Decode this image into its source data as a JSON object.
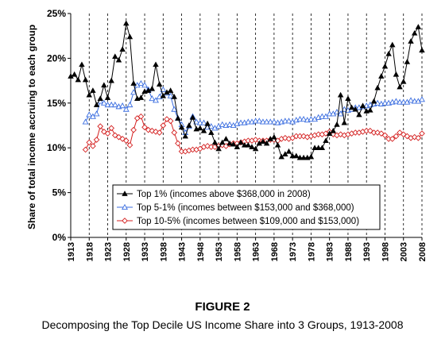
{
  "figure_label": "FIGURE 2",
  "caption": "Decomposing the Top Decile US Income Share into 3 Groups, 1913-2008",
  "chart_data": {
    "type": "line",
    "ylabel": "Share of total income accruing to each group",
    "xlabel": "",
    "ylim": [
      0,
      25
    ],
    "xlim": [
      1913,
      2008
    ],
    "yticks": [
      0,
      5,
      10,
      15,
      20,
      25
    ],
    "ytick_labels": [
      "0%",
      "5%",
      "10%",
      "15%",
      "20%",
      "25%"
    ],
    "xticks": [
      1913,
      1918,
      1923,
      1928,
      1933,
      1938,
      1943,
      1948,
      1953,
      1958,
      1963,
      1968,
      1973,
      1978,
      1983,
      1988,
      1993,
      1998,
      2003,
      2008
    ],
    "grid": "vertical-dashed",
    "legend_position": "lower-center",
    "series": [
      {
        "name": "Top 1% (incomes above $368,000 in 2008)",
        "color": "#000000",
        "marker": "filled-triangle",
        "x": [
          1913,
          1914,
          1915,
          1916,
          1917,
          1918,
          1919,
          1920,
          1921,
          1922,
          1923,
          1924,
          1925,
          1926,
          1927,
          1928,
          1929,
          1930,
          1931,
          1932,
          1933,
          1934,
          1935,
          1936,
          1937,
          1938,
          1939,
          1940,
          1941,
          1942,
          1943,
          1944,
          1945,
          1946,
          1947,
          1948,
          1949,
          1950,
          1951,
          1952,
          1953,
          1954,
          1955,
          1956,
          1957,
          1958,
          1959,
          1960,
          1961,
          1962,
          1963,
          1964,
          1965,
          1966,
          1967,
          1968,
          1969,
          1970,
          1971,
          1972,
          1973,
          1974,
          1975,
          1976,
          1977,
          1978,
          1979,
          1980,
          1981,
          1982,
          1983,
          1984,
          1985,
          1986,
          1987,
          1988,
          1989,
          1990,
          1991,
          1992,
          1993,
          1994,
          1995,
          1996,
          1997,
          1998,
          1999,
          2000,
          2001,
          2002,
          2003,
          2004,
          2005,
          2006,
          2007,
          2008
        ],
        "values": [
          18.0,
          18.2,
          17.6,
          19.3,
          17.6,
          15.9,
          16.4,
          14.8,
          15.5,
          17.0,
          15.6,
          17.5,
          20.2,
          19.8,
          21.0,
          23.9,
          22.4,
          17.2,
          15.5,
          15.6,
          16.3,
          16.4,
          16.6,
          19.3,
          17.1,
          15.8,
          16.2,
          16.4,
          15.7,
          13.3,
          12.3,
          11.3,
          12.5,
          13.4,
          12.1,
          12.2,
          11.9,
          12.7,
          11.7,
          10.6,
          9.9,
          10.6,
          11.0,
          10.5,
          10.4,
          10.1,
          10.6,
          10.3,
          10.3,
          10.1,
          9.9,
          10.5,
          10.7,
          10.5,
          11.0,
          11.2,
          10.3,
          9.0,
          9.3,
          9.6,
          9.1,
          9.1,
          8.9,
          8.9,
          8.9,
          9.0,
          10.0,
          10.0,
          10.0,
          10.8,
          11.6,
          11.9,
          12.6,
          15.9,
          12.8,
          15.5,
          14.5,
          14.3,
          13.7,
          14.7,
          14.1,
          14.2,
          15.2,
          16.7,
          18.0,
          19.1,
          20.5,
          21.5,
          18.2,
          16.8,
          17.4,
          19.6,
          21.9,
          22.8,
          23.5,
          20.9
        ]
      },
      {
        "name": "Top 5-1% (incomes between $153,000 and $368,000)",
        "color": "#3b6ee0",
        "marker": "hollow-triangle",
        "x": [
          1917,
          1918,
          1919,
          1920,
          1921,
          1922,
          1923,
          1924,
          1925,
          1926,
          1927,
          1928,
          1929,
          1930,
          1931,
          1932,
          1933,
          1934,
          1935,
          1936,
          1937,
          1938,
          1939,
          1940,
          1941,
          1942,
          1943,
          1944,
          1945,
          1946,
          1947,
          1948,
          1949,
          1950,
          1951,
          1952,
          1953,
          1954,
          1955,
          1956,
          1957,
          1958,
          1959,
          1960,
          1961,
          1962,
          1963,
          1964,
          1965,
          1966,
          1967,
          1968,
          1969,
          1970,
          1971,
          1972,
          1973,
          1974,
          1975,
          1976,
          1977,
          1978,
          1979,
          1980,
          1981,
          1982,
          1983,
          1984,
          1985,
          1986,
          1987,
          1988,
          1989,
          1990,
          1991,
          1992,
          1993,
          1994,
          1995,
          1996,
          1997,
          1998,
          1999,
          2000,
          2001,
          2002,
          2003,
          2004,
          2005,
          2006,
          2007,
          2008
        ],
        "values": [
          12.9,
          13.7,
          13.5,
          13.8,
          15.2,
          15.0,
          14.8,
          14.8,
          14.8,
          14.6,
          14.7,
          14.3,
          14.8,
          16.2,
          17.0,
          17.2,
          17.0,
          16.5,
          15.5,
          15.3,
          15.7,
          16.5,
          16.1,
          15.8,
          14.3,
          13.3,
          12.6,
          11.7,
          12.4,
          13.5,
          12.9,
          12.8,
          12.8,
          12.3,
          12.4,
          12.2,
          12.4,
          12.6,
          12.5,
          12.6,
          12.5,
          12.7,
          12.8,
          12.8,
          12.9,
          12.9,
          13.0,
          13.0,
          12.9,
          12.9,
          12.9,
          12.9,
          12.8,
          12.9,
          13.0,
          13.0,
          12.9,
          13.1,
          13.2,
          13.2,
          13.1,
          13.2,
          13.2,
          13.4,
          13.5,
          13.5,
          13.8,
          13.8,
          14.0,
          13.8,
          14.3,
          14.2,
          14.3,
          14.5,
          14.5,
          14.6,
          14.7,
          14.8,
          14.9,
          15.0,
          14.9,
          15.0,
          15.0,
          15.1,
          15.2,
          15.1,
          15.1,
          15.1,
          15.3,
          15.2,
          15.2,
          15.4
        ]
      },
      {
        "name": "Top 10-5% (incomes between $109,000 and $153,000)",
        "color": "#d42020",
        "marker": "hollow-diamond",
        "x": [
          1917,
          1918,
          1919,
          1920,
          1921,
          1922,
          1923,
          1924,
          1925,
          1926,
          1927,
          1928,
          1929,
          1930,
          1931,
          1932,
          1933,
          1934,
          1935,
          1936,
          1937,
          1938,
          1939,
          1940,
          1941,
          1942,
          1943,
          1944,
          1945,
          1946,
          1947,
          1948,
          1949,
          1950,
          1951,
          1952,
          1953,
          1954,
          1955,
          1956,
          1957,
          1958,
          1959,
          1960,
          1961,
          1962,
          1963,
          1964,
          1965,
          1966,
          1967,
          1968,
          1969,
          1970,
          1971,
          1972,
          1973,
          1974,
          1975,
          1976,
          1977,
          1978,
          1979,
          1980,
          1981,
          1982,
          1983,
          1984,
          1985,
          1986,
          1987,
          1988,
          1989,
          1990,
          1991,
          1992,
          1993,
          1994,
          1995,
          1996,
          1997,
          1998,
          1999,
          2000,
          2001,
          2002,
          2003,
          2004,
          2005,
          2006,
          2007,
          2008
        ],
        "values": [
          9.8,
          10.6,
          10.2,
          10.9,
          12.4,
          11.8,
          11.6,
          12.2,
          11.4,
          11.2,
          11.0,
          10.8,
          10.3,
          12.0,
          13.3,
          13.5,
          12.3,
          12.0,
          11.9,
          11.8,
          11.7,
          12.5,
          13.2,
          13.0,
          11.7,
          10.5,
          9.6,
          9.6,
          9.7,
          9.8,
          9.8,
          9.9,
          10.1,
          10.2,
          10.1,
          10.1,
          10.2,
          10.3,
          10.2,
          10.4,
          10.5,
          10.5,
          10.6,
          10.7,
          10.8,
          10.8,
          10.9,
          10.8,
          10.8,
          10.8,
          10.9,
          10.9,
          10.8,
          11.0,
          11.1,
          11.0,
          11.1,
          11.3,
          11.3,
          11.3,
          11.2,
          11.3,
          11.4,
          11.5,
          11.5,
          11.6,
          11.8,
          11.5,
          11.4,
          11.5,
          11.4,
          11.5,
          11.6,
          11.7,
          11.7,
          11.8,
          11.9,
          11.9,
          11.7,
          11.7,
          11.6,
          11.4,
          11.0,
          11.0,
          11.3,
          11.7,
          11.5,
          11.3,
          11.1,
          11.2,
          11.1,
          11.6
        ]
      }
    ]
  }
}
